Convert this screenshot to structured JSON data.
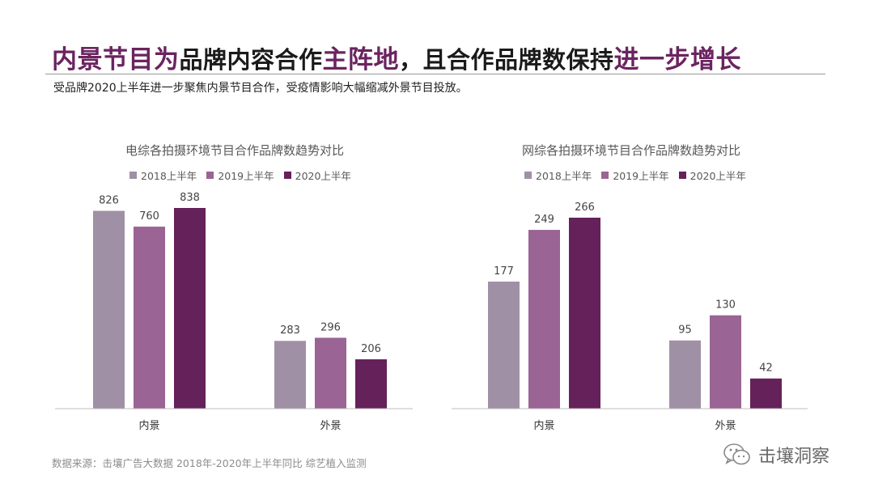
{
  "headline": {
    "seg1": "内景节目为",
    "seg2": "品牌内容合作",
    "seg3": "主阵地",
    "seg4": "，且合作品牌数保持",
    "seg5": "进一步增长"
  },
  "subtitle": "受品牌2020上半年进一步聚焦内景节目合作，受疫情影响大幅缩减外景节目投放。",
  "colors": {
    "2018": "#a090a5",
    "2019": "#9a6494",
    "2020": "#65215a",
    "accent": "#6b2460"
  },
  "chart_data": [
    {
      "type": "bar",
      "title": "电综各拍摄环境节目合作品牌数趋势对比",
      "categories": [
        "内景",
        "外景"
      ],
      "series": [
        {
          "name": "2018上半年",
          "values": [
            826,
            283
          ]
        },
        {
          "name": "2019上半年",
          "values": [
            760,
            296
          ]
        },
        {
          "name": "2020上半年",
          "values": [
            838,
            206
          ]
        }
      ],
      "legend": "top",
      "grid": false
    },
    {
      "type": "bar",
      "title": "网综各拍摄环境节目合作品牌数趋势对比",
      "categories": [
        "内景",
        "外景"
      ],
      "series": [
        {
          "name": "2018上半年",
          "values": [
            177,
            95
          ]
        },
        {
          "name": "2019上半年",
          "values": [
            249,
            130
          ]
        },
        {
          "name": "2020上半年",
          "values": [
            266,
            42
          ]
        }
      ],
      "legend": "top",
      "grid": false
    }
  ],
  "source": "数据来源：击壤广告大数据 2018年-2020年上半年同比 综艺植入监测",
  "brand": {
    "name": "击壤洞察",
    "icon": "wechat-icon"
  }
}
